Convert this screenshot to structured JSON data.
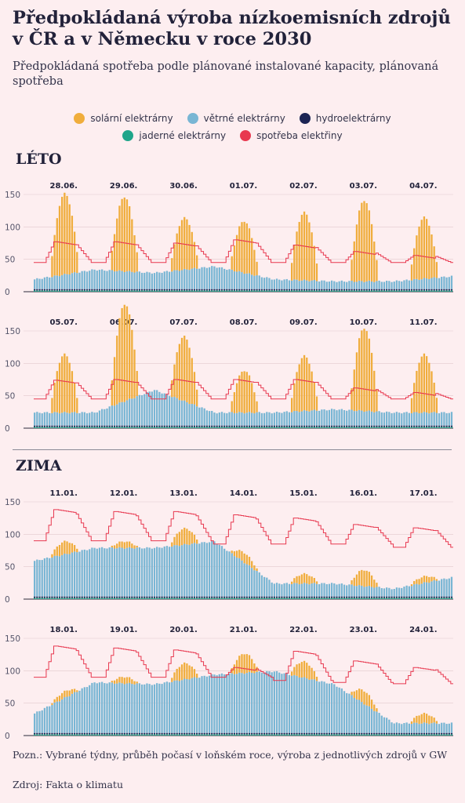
{
  "title": "Předpokládaná výroba nízkoemisních zdrojů v ČR a v Německu v roce 2030",
  "subtitle": "Předpokládaná spotřeba podle plánované instalované kapacity, plánovaná spotřeba",
  "legend": [
    {
      "label": "solární elektrárny",
      "color": "#f0ad3c"
    },
    {
      "label": "větrné elektrárny",
      "color": "#79b6d4"
    },
    {
      "label": "hydroelektrárny",
      "color": "#1c2454"
    },
    {
      "label": "jaderné elektrárny",
      "color": "#1fa58a"
    },
    {
      "label": "spotřeba elektřiny",
      "color": "#e8384f"
    }
  ],
  "sections": {
    "summer": "LÉTO",
    "winter": "ZIMA"
  },
  "note": "Pozn.: Vybrané týdny, průběh počasí v loňském roce, výroba z jednotlivých zdrojů v GW",
  "source": "Zdroj: Fakta o klimatu",
  "chart_data": [
    {
      "type": "area",
      "season": "LÉTO",
      "ylim": [
        0,
        150
      ],
      "yticks": [
        0,
        50,
        100,
        150
      ],
      "days": [
        "28.06.",
        "29.06.",
        "30.06.",
        "01.07.",
        "02.07.",
        "03.07.",
        "04.07."
      ],
      "solar_peak": [
        125,
        115,
        80,
        80,
        105,
        125,
        95
      ],
      "wind_daily": [
        15,
        30,
        25,
        35,
        15,
        12,
        12,
        20
      ],
      "consumption_peak": [
        77,
        77,
        75,
        80,
        72,
        62,
        56
      ],
      "consumption_trough": [
        45,
        45,
        45,
        45,
        45,
        45,
        45
      ],
      "hydro": 2,
      "nuclear": 2
    },
    {
      "type": "area",
      "season": "LÉTO",
      "ylim": [
        0,
        150
      ],
      "yticks": [
        0,
        50,
        100,
        150
      ],
      "days": [
        "05.07.",
        "06.07.",
        "07.07.",
        "08.07.",
        "09.07.",
        "10.07.",
        "11.07."
      ],
      "solar_peak": [
        90,
        150,
        100,
        65,
        85,
        128,
        90
      ],
      "wind_daily": [
        20,
        20,
        55,
        20,
        20,
        25,
        20,
        20
      ],
      "consumption_peak": [
        74,
        75,
        75,
        75,
        75,
        62,
        55
      ],
      "consumption_trough": [
        45,
        45,
        45,
        45,
        45,
        45,
        45
      ],
      "hydro": 2,
      "nuclear": 2
    },
    {
      "type": "area",
      "season": "ZIMA",
      "ylim": [
        0,
        150
      ],
      "yticks": [
        0,
        50,
        100,
        150
      ],
      "days": [
        "11.01.",
        "12.01.",
        "13.01.",
        "14.01.",
        "15.01.",
        "16.01.",
        "17.01."
      ],
      "solar_peak": [
        20,
        10,
        25,
        15,
        15,
        25,
        10
      ],
      "wind_daily": [
        55,
        75,
        75,
        85,
        20,
        20,
        12,
        30
      ],
      "consumption_peak": [
        138,
        135,
        135,
        130,
        125,
        115,
        110
      ],
      "consumption_trough": [
        90,
        90,
        90,
        85,
        85,
        85,
        80
      ],
      "hydro": 2,
      "nuclear": 2
    },
    {
      "type": "area",
      "season": "ZIMA",
      "ylim": [
        0,
        150
      ],
      "yticks": [
        0,
        50,
        100,
        150
      ],
      "days": [
        "18.01.",
        "19.01.",
        "20.01.",
        "21.01.",
        "22.01.",
        "23.01.",
        "24.01."
      ],
      "solar_peak": [
        10,
        10,
        25,
        30,
        25,
        20,
        15
      ],
      "wind_daily": [
        30,
        78,
        75,
        90,
        95,
        75,
        15,
        15
      ],
      "consumption_peak": [
        138,
        135,
        132,
        105,
        130,
        115,
        105
      ],
      "consumption_trough": [
        90,
        90,
        90,
        90,
        85,
        82,
        80
      ],
      "hydro": 2,
      "nuclear": 2
    }
  ]
}
